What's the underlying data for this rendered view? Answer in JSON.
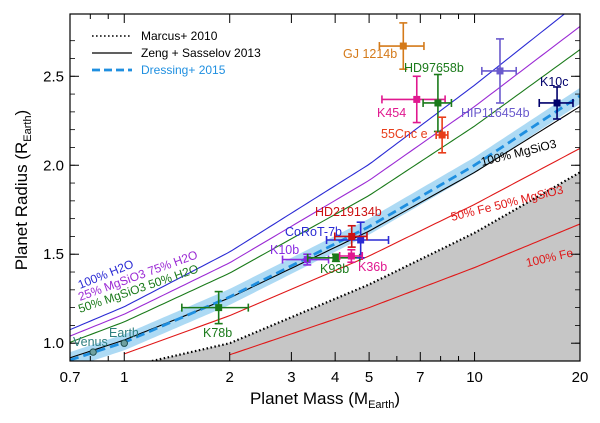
{
  "chart_data": {
    "type": "scatter",
    "xlabel": "Planet Mass (M",
    "xlabel_sub": "Earth",
    "xlabel_end": ")",
    "ylabel": "Planet Radius (R",
    "ylabel_sub": "Earth",
    "ylabel_end": ")",
    "xscale": "log",
    "xlim": [
      0.7,
      20
    ],
    "ylim": [
      0.9,
      2.85
    ],
    "x_ticks": [
      0.7,
      1,
      2,
      3,
      4,
      5,
      7,
      10,
      20
    ],
    "x_tick_labels": [
      "0.7",
      "1",
      "2",
      "3",
      "4",
      "5",
      "7",
      "10",
      "20"
    ],
    "y_ticks": [
      1.0,
      1.5,
      2.0,
      2.5
    ],
    "y_tick_labels": [
      "1.0",
      "1.5",
      "2.0",
      "2.5"
    ],
    "legend": {
      "placement": "top-left",
      "entries": [
        {
          "label": "Marcus+ 2010",
          "style": "dotted",
          "color": "#000000"
        },
        {
          "label": "Zeng + Sasselov 2013",
          "style": "solid",
          "color": "#000000"
        },
        {
          "label": "Dressing+ 2015",
          "style": "dashed",
          "color": "#1f8fe0"
        }
      ]
    },
    "curves": [
      {
        "label": "100% H2O",
        "color": "#2a2ad4",
        "points": [
          [
            0.7,
            1.076
          ],
          [
            1,
            1.205
          ],
          [
            2,
            1.513
          ],
          [
            5,
            2.005
          ],
          [
            10,
            2.45
          ],
          [
            20,
            2.92
          ]
        ]
      },
      {
        "label": "25% MgSiO3 75% H2O",
        "color": "#9b2ad4",
        "points": [
          [
            0.7,
            1.04
          ],
          [
            1,
            1.163
          ],
          [
            2,
            1.452
          ],
          [
            5,
            1.915
          ],
          [
            10,
            2.33
          ],
          [
            20,
            2.78
          ]
        ]
      },
      {
        "label": "50% MgSiO3 50% H2O",
        "color": "#1a7a1a",
        "points": [
          [
            0.7,
            1.005
          ],
          [
            1,
            1.12
          ],
          [
            2,
            1.394
          ],
          [
            5,
            1.83
          ],
          [
            10,
            2.22
          ],
          [
            20,
            2.65
          ]
        ]
      },
      {
        "label": "100% MgSiO3",
        "color": "#000000",
        "points": [
          [
            0.7,
            0.918
          ],
          [
            1,
            1.018
          ],
          [
            2,
            1.255
          ],
          [
            5,
            1.63
          ],
          [
            10,
            1.96
          ],
          [
            20,
            2.33
          ]
        ]
      },
      {
        "label": "50% Fe 50% MgSiO3",
        "color": "#e01818",
        "points": [
          [
            1,
            0.94
          ],
          [
            2,
            1.155
          ],
          [
            5,
            1.49
          ],
          [
            10,
            1.78
          ],
          [
            20,
            2.095
          ]
        ]
      },
      {
        "label": "100% Fe",
        "color": "#e01818",
        "points": [
          [
            2,
            0.935
          ],
          [
            5,
            1.2
          ],
          [
            10,
            1.425
          ],
          [
            20,
            1.67
          ]
        ]
      }
    ],
    "marcus_curve": {
      "label": "Marcus+ 2010",
      "points": [
        [
          1.2,
          0.9
        ],
        [
          2,
          1.0
        ],
        [
          5,
          1.33
        ],
        [
          10,
          1.62
        ],
        [
          20,
          1.96
        ]
      ]
    },
    "dressing_relation": {
      "label": "Dressing+ 2015",
      "color": "#1f8fe0",
      "band_color": "#9fd4f2",
      "points": [
        [
          0.7,
          0.905
        ],
        [
          1,
          1.005
        ],
        [
          2,
          1.26
        ],
        [
          5,
          1.655
        ],
        [
          10,
          2.0
        ],
        [
          20,
          2.39
        ]
      ],
      "band_halfwidth": 0.045
    },
    "planets": [
      {
        "name": "Venus",
        "x": 0.815,
        "y": 0.95,
        "color": "#2f7f7f",
        "xerr": [
          0,
          0
        ],
        "yerr": [
          0,
          0
        ],
        "marker": "circle"
      },
      {
        "name": "Earth",
        "x": 1.0,
        "y": 1.0,
        "color": "#2f7f7f",
        "xerr": [
          0,
          0
        ],
        "yerr": [
          0,
          0
        ],
        "marker": "circle"
      },
      {
        "name": "K78b",
        "x": 1.86,
        "y": 1.2,
        "color": "#1a7a1a",
        "xerr": [
          0.4,
          0.4
        ],
        "yerr": [
          0.09,
          0.09
        ],
        "marker": "square"
      },
      {
        "name": "K10b",
        "x": 3.33,
        "y": 1.47,
        "color": "#8a2be2",
        "xerr": [
          0.5,
          0.5
        ],
        "yerr": [
          0.03,
          0.03
        ],
        "marker": "square"
      },
      {
        "name": "K93b",
        "x": 4.02,
        "y": 1.48,
        "color": "#1a7a1a",
        "xerr": [
          0.68,
          0.68
        ],
        "yerr": [
          0.02,
          0.02
        ],
        "marker": "square"
      },
      {
        "name": "CoRoT-7b",
        "x": 4.73,
        "y": 1.58,
        "color": "#2a2ad4",
        "xerr": [
          0.95,
          0.95
        ],
        "yerr": [
          0.1,
          0.1
        ],
        "marker": "square"
      },
      {
        "name": "HD219134b",
        "x": 4.46,
        "y": 1.6,
        "color": "#cc1111",
        "xerr": [
          0.47,
          0.47
        ],
        "yerr": [
          0.06,
          0.06
        ],
        "marker": "square"
      },
      {
        "name": "K36b",
        "x": 4.45,
        "y": 1.49,
        "color": "#e0188f",
        "xerr": [
          0.33,
          0.33
        ],
        "yerr": [
          0.035,
          0.035
        ],
        "marker": "square"
      },
      {
        "name": "K454",
        "x": 6.84,
        "y": 2.37,
        "color": "#e0188f",
        "xerr": [
          1.4,
          1.4
        ],
        "yerr": [
          0.13,
          0.13
        ],
        "marker": "square"
      },
      {
        "name": "HD97658b",
        "x": 7.86,
        "y": 2.35,
        "color": "#1a7a1a",
        "xerr": [
          0.73,
          0.73
        ],
        "yerr": [
          0.16,
          0.16
        ],
        "marker": "square"
      },
      {
        "name": "GJ 1214b",
        "x": 6.26,
        "y": 2.67,
        "color": "#d47a1a",
        "xerr": [
          0.91,
          0.91
        ],
        "yerr": [
          0.13,
          0.13
        ],
        "marker": "square"
      },
      {
        "name": "55Cnc e",
        "x": 8.08,
        "y": 2.17,
        "color": "#e83d1a",
        "xerr": [
          0.31,
          0.31
        ],
        "yerr": [
          0.1,
          0.1
        ],
        "marker": "square"
      },
      {
        "name": "HIP116454b",
        "x": 11.82,
        "y": 2.53,
        "color": "#6a5acd",
        "xerr": [
          1.33,
          1.33
        ],
        "yerr": [
          0.18,
          0.18
        ],
        "marker": "square"
      },
      {
        "name": "K10c",
        "x": 17.2,
        "y": 2.35,
        "color": "#00006b",
        "xerr": [
          1.9,
          1.9
        ],
        "yerr": [
          0.09,
          0.09
        ],
        "marker": "square"
      }
    ]
  }
}
